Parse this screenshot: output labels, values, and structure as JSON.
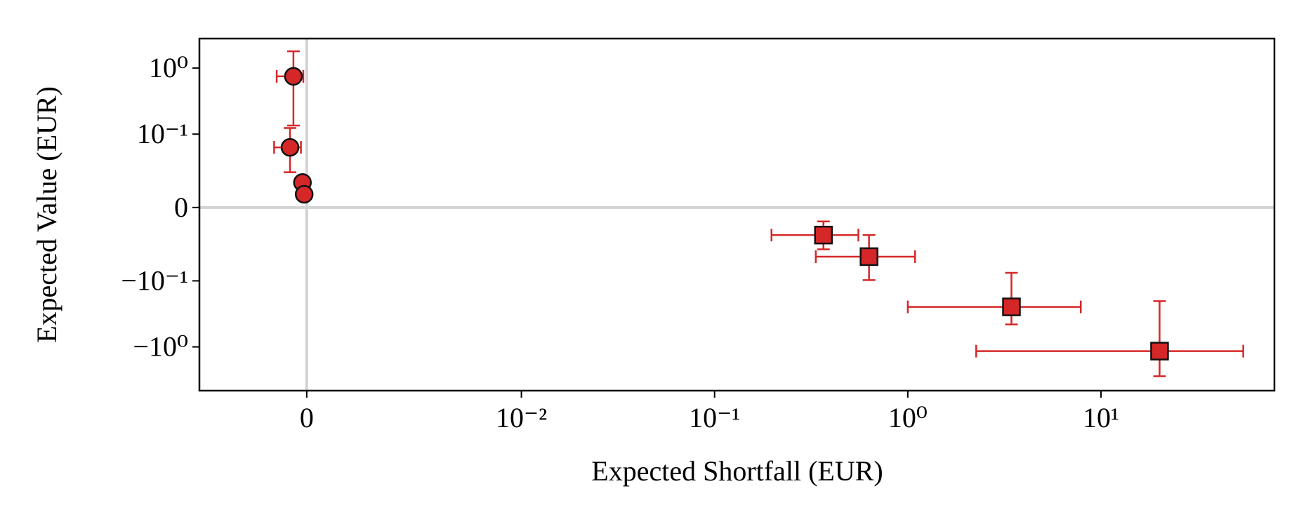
{
  "chart_data": {
    "type": "scatter",
    "xlabel": "Expected Shortfall (EUR)",
    "ylabel": "Expected Value (EUR)",
    "xscale": "symlog",
    "xlinthresh": 0.01,
    "yscale": "symlog",
    "ylinthresh": 0.1,
    "xlim": [
      -0.005,
      79
    ],
    "ylim": [
      -4.6,
      2.8
    ],
    "xticks": [
      0,
      {
        "value": 0.01,
        "label": "10⁻²"
      },
      {
        "value": 0.1,
        "label": "10⁻¹"
      },
      {
        "value": 1,
        "label": "10⁰"
      },
      {
        "value": 10,
        "label": "10¹"
      }
    ],
    "yticks": [
      {
        "value": -1,
        "label": "−10⁰"
      },
      {
        "value": -0.1,
        "label": "−10⁻¹"
      },
      0,
      {
        "value": 0.1,
        "label": "10⁻¹"
      },
      {
        "value": 1,
        "label": "10⁰"
      }
    ],
    "series": [
      {
        "marker": "circle",
        "color": "#d62728",
        "x": [
          -0.00062,
          -0.00078,
          -0.0002,
          -0.00012
        ],
        "y": [
          0.75,
          0.082,
          0.034,
          0.018
        ],
        "x_lower": [
          -0.0014,
          -0.00152,
          null,
          null
        ],
        "x_upper": [
          -0.00016,
          -0.00027,
          null,
          null
        ],
        "y_lower": [
          0.135,
          0.048,
          null,
          null
        ],
        "y_upper": [
          1.8,
          0.124,
          null,
          null
        ]
      },
      {
        "marker": "square",
        "color": "#d62728",
        "x": [
          0.366,
          0.63,
          3.44,
          20.1
        ],
        "y": [
          -0.0376,
          -0.067,
          -0.248,
          -1.16
        ],
        "x_lower": [
          0.197,
          0.334,
          1.0,
          2.26
        ],
        "x_upper": [
          0.555,
          1.09,
          7.86,
          54.5
        ],
        "y_lower": [
          -0.057,
          -0.099,
          -0.458,
          -2.79
        ],
        "y_upper": [
          -0.019,
          -0.0376,
          -0.089,
          -0.203
        ]
      }
    ]
  }
}
